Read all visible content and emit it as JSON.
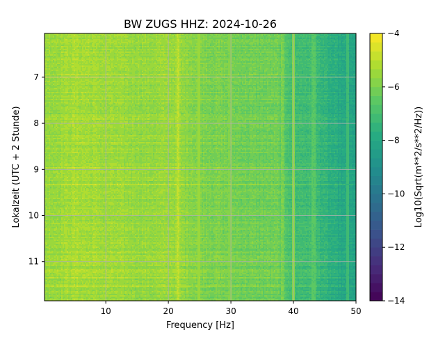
{
  "chart_data": {
    "type": "heatmap",
    "title": "BW ZUGS  HHZ: 2024-10-26",
    "xlabel": "Frequency [Hz]",
    "ylabel": "Lokalzeit (UTC + 2 Stunde)",
    "colorbar_label": "Log10(Sqrt(m**2/s**2/Hz))",
    "xlim": [
      0.2,
      50
    ],
    "ylim": [
      11.85,
      6.05
    ],
    "clim": [
      -14,
      -4
    ],
    "colormap": "viridis",
    "colorbar_levels": 30,
    "grid": true,
    "x_ticks": [
      10,
      20,
      30,
      40,
      50
    ],
    "x_tick_labels": [
      "10",
      "20",
      "30",
      "40",
      "50"
    ],
    "y_ticks": [
      7,
      8,
      9,
      10,
      11
    ],
    "y_tick_labels": [
      "7",
      "8",
      "9",
      "10",
      "11"
    ],
    "colorbar_ticks": [
      -4,
      -6,
      -8,
      -10,
      -12,
      -14
    ],
    "colorbar_tick_labels": [
      "−4",
      "−6",
      "−8",
      "−10",
      "−12",
      "−14"
    ],
    "spectral_profile": {
      "frequency_hz": [
        0.2,
        2,
        5,
        8,
        12,
        17,
        21,
        25,
        30,
        34,
        37.5,
        40,
        42,
        44,
        46,
        48,
        50
      ],
      "log10_level": [
        -5.5,
        -5.5,
        -5.3,
        -5.4,
        -5.5,
        -5.6,
        -5.5,
        -5.9,
        -6.1,
        -6.2,
        -6.2,
        -7.1,
        -7.1,
        -7.3,
        -7.7,
        -8.0,
        -8.3
      ]
    },
    "spectral_lines": [
      {
        "frequency_hz": 21.6,
        "log10_level": -5.0
      },
      {
        "frequency_hz": 24.8,
        "log10_level": -5.5
      },
      {
        "frequency_hz": 29.9,
        "log10_level": -5.9
      },
      {
        "frequency_hz": 38.3,
        "log10_level": -6.0
      },
      {
        "frequency_hz": 40.0,
        "log10_level": -5.8
      },
      {
        "frequency_hz": 43.2,
        "log10_level": -6.6
      },
      {
        "frequency_hz": 48.7,
        "log10_level": -7.2
      }
    ]
  }
}
